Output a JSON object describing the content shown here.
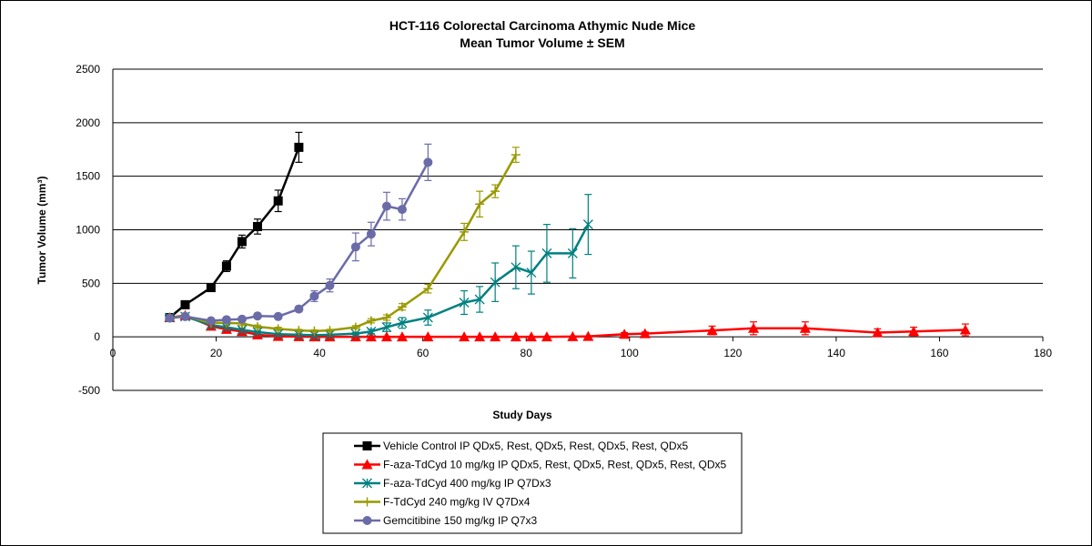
{
  "chart_data": {
    "type": "line",
    "title_line1": "HCT-116 Colorectal Carcinoma Athymic Nude Mice",
    "title_line2": "Mean Tumor Volume ± SEM",
    "xlabel": "Study Days",
    "ylabel": "Tumor Volume (mm³)",
    "xlim": [
      0,
      180
    ],
    "ylim": [
      -500,
      2500
    ],
    "x_ticks": [
      0,
      20,
      40,
      60,
      80,
      100,
      120,
      140,
      160,
      180
    ],
    "y_ticks": [
      -500,
      0,
      500,
      1000,
      1500,
      2000,
      2500
    ],
    "grid": "horizontal",
    "legend_position": "bottom-center",
    "error_bars": "SEM",
    "series": [
      {
        "name": "Vehicle Control  IP   QDx5, Rest, QDx5, Rest, QDx5, Rest, QDx5",
        "color": "#000000",
        "marker": "square",
        "points": [
          {
            "x": 11,
            "y": 180,
            "err": 0
          },
          {
            "x": 14,
            "y": 300,
            "err": 20
          },
          {
            "x": 19,
            "y": 460,
            "err": 25
          },
          {
            "x": 22,
            "y": 660,
            "err": 50
          },
          {
            "x": 25,
            "y": 890,
            "err": 60
          },
          {
            "x": 28,
            "y": 1030,
            "err": 70
          },
          {
            "x": 32,
            "y": 1270,
            "err": 100
          },
          {
            "x": 36,
            "y": 1770,
            "err": 140
          }
        ]
      },
      {
        "name": "F-aza-TdCyd 10 mg/kg IP QDx5, Rest, QDx5, Rest, QDx5, Rest, QDx5",
        "color": "#ff0000",
        "marker": "triangle",
        "points": [
          {
            "x": 11,
            "y": 180,
            "err": 15
          },
          {
            "x": 14,
            "y": 200,
            "err": 20
          },
          {
            "x": 19,
            "y": 100,
            "err": 15
          },
          {
            "x": 22,
            "y": 70,
            "err": 10
          },
          {
            "x": 25,
            "y": 50,
            "err": 8
          },
          {
            "x": 28,
            "y": 20,
            "err": 5
          },
          {
            "x": 32,
            "y": 5,
            "err": 3
          },
          {
            "x": 36,
            "y": 2,
            "err": 2
          },
          {
            "x": 39,
            "y": 0,
            "err": 0
          },
          {
            "x": 42,
            "y": 0,
            "err": 0
          },
          {
            "x": 47,
            "y": 0,
            "err": 0
          },
          {
            "x": 50,
            "y": 0,
            "err": 0
          },
          {
            "x": 53,
            "y": 0,
            "err": 0
          },
          {
            "x": 56,
            "y": 0,
            "err": 0
          },
          {
            "x": 61,
            "y": 0,
            "err": 0
          },
          {
            "x": 68,
            "y": 0,
            "err": 0
          },
          {
            "x": 71,
            "y": 0,
            "err": 0
          },
          {
            "x": 74,
            "y": 0,
            "err": 0
          },
          {
            "x": 78,
            "y": 0,
            "err": 0
          },
          {
            "x": 81,
            "y": 0,
            "err": 0
          },
          {
            "x": 84,
            "y": 0,
            "err": 0
          },
          {
            "x": 89,
            "y": 2,
            "err": 2
          },
          {
            "x": 92,
            "y": 5,
            "err": 3
          },
          {
            "x": 99,
            "y": 25,
            "err": 15
          },
          {
            "x": 103,
            "y": 30,
            "err": 15
          },
          {
            "x": 116,
            "y": 60,
            "err": 40
          },
          {
            "x": 124,
            "y": 80,
            "err": 60
          },
          {
            "x": 134,
            "y": 80,
            "err": 60
          },
          {
            "x": 148,
            "y": 40,
            "err": 35
          },
          {
            "x": 155,
            "y": 50,
            "err": 40
          },
          {
            "x": 165,
            "y": 65,
            "err": 55
          }
        ]
      },
      {
        "name": "F-aza-TdCyd 400 mg/kg IP Q7Dx3",
        "color": "#008080",
        "marker": "asterisk",
        "points": [
          {
            "x": 11,
            "y": 180,
            "err": 15
          },
          {
            "x": 14,
            "y": 190,
            "err": 15
          },
          {
            "x": 19,
            "y": 110,
            "err": 20
          },
          {
            "x": 22,
            "y": 90,
            "err": 20
          },
          {
            "x": 25,
            "y": 65,
            "err": 15
          },
          {
            "x": 28,
            "y": 45,
            "err": 10
          },
          {
            "x": 32,
            "y": 25,
            "err": 8
          },
          {
            "x": 36,
            "y": 20,
            "err": 8
          },
          {
            "x": 39,
            "y": 15,
            "err": 5
          },
          {
            "x": 42,
            "y": 20,
            "err": 5
          },
          {
            "x": 47,
            "y": 30,
            "err": 10
          },
          {
            "x": 50,
            "y": 50,
            "err": 20
          },
          {
            "x": 53,
            "y": 90,
            "err": 40
          },
          {
            "x": 56,
            "y": 130,
            "err": 50
          },
          {
            "x": 61,
            "y": 180,
            "err": 70
          },
          {
            "x": 68,
            "y": 320,
            "err": 110
          },
          {
            "x": 71,
            "y": 350,
            "err": 120
          },
          {
            "x": 74,
            "y": 510,
            "err": 180
          },
          {
            "x": 78,
            "y": 650,
            "err": 200
          },
          {
            "x": 81,
            "y": 600,
            "err": 200
          },
          {
            "x": 84,
            "y": 780,
            "err": 270
          },
          {
            "x": 89,
            "y": 780,
            "err": 230
          },
          {
            "x": 92,
            "y": 1050,
            "err": 280
          }
        ]
      },
      {
        "name": "F-TdCyd  240 mg/kg   IV Q7Dx4",
        "color": "#999900",
        "marker": "plus",
        "points": [
          {
            "x": 11,
            "y": 180,
            "err": 15
          },
          {
            "x": 14,
            "y": 195,
            "err": 15
          },
          {
            "x": 19,
            "y": 130,
            "err": 20
          },
          {
            "x": 22,
            "y": 130,
            "err": 20
          },
          {
            "x": 25,
            "y": 125,
            "err": 20
          },
          {
            "x": 28,
            "y": 95,
            "err": 15
          },
          {
            "x": 32,
            "y": 75,
            "err": 15
          },
          {
            "x": 36,
            "y": 60,
            "err": 10
          },
          {
            "x": 39,
            "y": 55,
            "err": 10
          },
          {
            "x": 42,
            "y": 60,
            "err": 10
          },
          {
            "x": 47,
            "y": 90,
            "err": 15
          },
          {
            "x": 50,
            "y": 150,
            "err": 20
          },
          {
            "x": 53,
            "y": 180,
            "err": 25
          },
          {
            "x": 56,
            "y": 280,
            "err": 30
          },
          {
            "x": 61,
            "y": 450,
            "err": 40
          },
          {
            "x": 68,
            "y": 980,
            "err": 80
          },
          {
            "x": 71,
            "y": 1240,
            "err": 120
          },
          {
            "x": 74,
            "y": 1360,
            "err": 60
          },
          {
            "x": 78,
            "y": 1700,
            "err": 70
          }
        ]
      },
      {
        "name": "Gemcitibine 150 mg/kg  IP  Q7x3",
        "color": "#6b6ba8",
        "marker": "circle",
        "points": [
          {
            "x": 11,
            "y": 175,
            "err": 15
          },
          {
            "x": 14,
            "y": 190,
            "err": 15
          },
          {
            "x": 19,
            "y": 150,
            "err": 15
          },
          {
            "x": 22,
            "y": 160,
            "err": 15
          },
          {
            "x": 25,
            "y": 165,
            "err": 15
          },
          {
            "x": 28,
            "y": 195,
            "err": 15
          },
          {
            "x": 32,
            "y": 190,
            "err": 15
          },
          {
            "x": 36,
            "y": 260,
            "err": 25
          },
          {
            "x": 39,
            "y": 380,
            "err": 50
          },
          {
            "x": 42,
            "y": 480,
            "err": 60
          },
          {
            "x": 47,
            "y": 840,
            "err": 130
          },
          {
            "x": 50,
            "y": 960,
            "err": 110
          },
          {
            "x": 53,
            "y": 1220,
            "err": 130
          },
          {
            "x": 56,
            "y": 1190,
            "err": 100
          },
          {
            "x": 61,
            "y": 1630,
            "err": 170
          }
        ]
      }
    ]
  }
}
